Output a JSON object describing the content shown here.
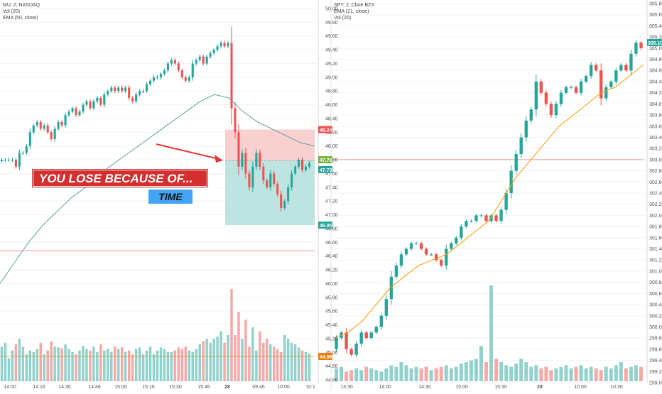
{
  "left_panel": {
    "legend": [
      "MU, 2, NASDAQ",
      "Vol (20)",
      "EMA (50, close)"
    ],
    "price_axis": [
      "50.00",
      "49.80",
      "49.60",
      "49.40",
      "49.20",
      "49.00",
      "48.80",
      "48.60",
      "48.40",
      "48.20",
      "48.00",
      "47.80",
      "47.60",
      "47.40",
      "47.20",
      "47.00",
      "46.80",
      "46.60",
      "46.40",
      "46.20",
      "46.00",
      "45.80",
      "45.60",
      "45.40",
      "45.20",
      "45.00",
      "44.80",
      "44.60"
    ],
    "time_axis": [
      "14:00",
      "14:16",
      "14:30",
      "14:46",
      "15:00",
      "15:16",
      "15:30",
      "15:46",
      "28",
      "09:46",
      "10:00",
      "10:1"
    ],
    "badges": {
      "stop": "48.24",
      "upper": "47.79",
      "last": "47.73",
      "target": "46.85",
      "volume": "44.96"
    },
    "annotation": {
      "headline": "YOU LOSE BECAUSE OF...",
      "subtitle": "TIME"
    }
  },
  "right_panel": {
    "legend": [
      "SPY, 2, Cboe BZX",
      "EMA (21, close)",
      "Vol (20)"
    ],
    "price_axis": [
      "305.80",
      "305.60",
      "305.40",
      "305.20",
      "305.00",
      "304.80",
      "304.60",
      "304.40",
      "304.20",
      "304.00",
      "303.80",
      "303.60",
      "303.40",
      "303.20",
      "303.00",
      "302.80",
      "302.60",
      "302.40",
      "302.20",
      "302.00",
      "301.80",
      "301.60",
      "301.40",
      "301.20",
      "301.00",
      "300.80",
      "300.60",
      "300.40",
      "300.20",
      "300.00",
      "299.80",
      "299.60",
      "299.40",
      "299.20",
      "299.00"
    ],
    "time_axis": [
      "13:30",
      "14:00",
      "14:30",
      "15:00",
      "15:30",
      "28",
      "10:00",
      "10:30"
    ],
    "badges": {
      "last": "305.10"
    }
  },
  "colors": {
    "up": "#26a69a",
    "down": "#ef5350",
    "ema_left": "#5e9ea0",
    "ema_right": "#ff9800",
    "stop_zone": "#f8c8c8",
    "target_zone": "#b2dfdb",
    "banner": "#d32f2f",
    "time_box": "#42a5f5"
  },
  "chart_data": [
    {
      "type": "candlestick",
      "title": "MU, 2, NASDAQ",
      "ylim": [
        44.6,
        50.0
      ],
      "closes": [
        47.8,
        47.8,
        47.8,
        47.8,
        47.7,
        47.9,
        47.9,
        48.0,
        48.2,
        48.3,
        48.35,
        48.25,
        48.3,
        48.2,
        48.1,
        48.25,
        48.35,
        48.3,
        48.45,
        48.5,
        48.55,
        48.45,
        48.5,
        48.6,
        48.65,
        48.55,
        48.65,
        48.7,
        48.6,
        48.75,
        48.8,
        48.85,
        48.8,
        48.85,
        48.8,
        48.85,
        48.7,
        48.65,
        48.75,
        48.8,
        48.8,
        48.9,
        48.95,
        49.0,
        49.0,
        49.05,
        49.1,
        49.2,
        49.25,
        49.2,
        49.1,
        49.0,
        48.95,
        49.0,
        49.2,
        49.25,
        49.3,
        49.2,
        49.3,
        49.35,
        49.4,
        49.45,
        49.5,
        49.45,
        49.5,
        48.55,
        48.2,
        47.7,
        47.9,
        47.6,
        47.4,
        47.7,
        47.9,
        47.7,
        47.5,
        47.4,
        47.6,
        47.45,
        47.3,
        47.1,
        47.2,
        47.4,
        47.6,
        47.7,
        47.8,
        47.65,
        47.7,
        47.75
      ],
      "volume": [
        45,
        50,
        30,
        40,
        48,
        55,
        45,
        35,
        40,
        38,
        42,
        50,
        35,
        40,
        52,
        45,
        44,
        43,
        48,
        42,
        38,
        35,
        40,
        46,
        42,
        40,
        45,
        38,
        48,
        40,
        42,
        38,
        45,
        42,
        44,
        38,
        40,
        35,
        42,
        44,
        35,
        40,
        45,
        35,
        40,
        44,
        42,
        38,
        38,
        40,
        44,
        42,
        45,
        40,
        38,
        42,
        48,
        52,
        55,
        50,
        55,
        58,
        65,
        50,
        60,
        120,
        60,
        90,
        55,
        80,
        45,
        70,
        40,
        65,
        50,
        55,
        48,
        45,
        42,
        38,
        60,
        55,
        50,
        48,
        44,
        40,
        38,
        36
      ],
      "ema_50": [
        46.0,
        46.3,
        46.6,
        46.85,
        47.05,
        47.25,
        47.4,
        47.6,
        47.75,
        47.9,
        48.05,
        48.2,
        48.35,
        48.5,
        48.65,
        48.75,
        48.7,
        48.5,
        48.35,
        48.25,
        48.15,
        48.05,
        48.0
      ],
      "levels": {
        "stop": 48.24,
        "entry": 47.79,
        "last": 47.73,
        "target": 46.85
      }
    },
    {
      "type": "candlestick",
      "title": "SPY, 2, Cboe BZX",
      "ylim": [
        299.0,
        305.8
      ],
      "closes": [
        299.8,
        299.9,
        299.6,
        299.5,
        299.7,
        299.9,
        299.8,
        299.9,
        300.0,
        300.2,
        300.5,
        300.9,
        301.1,
        301.3,
        301.4,
        301.5,
        301.5,
        301.4,
        301.3,
        301.3,
        301.2,
        301.1,
        301.4,
        301.5,
        301.6,
        301.8,
        301.9,
        301.9,
        302.0,
        302.0,
        301.9,
        302.0,
        301.9,
        302.1,
        302.4,
        302.8,
        303.1,
        303.4,
        303.7,
        303.9,
        304.4,
        304.2,
        304.0,
        303.8,
        304.0,
        304.2,
        304.3,
        304.3,
        304.2,
        304.4,
        304.5,
        304.7,
        304.6,
        304.1,
        304.3,
        304.4,
        304.6,
        304.7,
        304.6,
        304.9,
        305.1,
        305.0
      ],
      "volume": [
        8,
        9,
        6,
        7,
        8,
        7,
        9,
        8,
        7,
        6,
        8,
        10,
        9,
        12,
        10,
        8,
        9,
        8,
        9,
        7,
        8,
        9,
        10,
        8,
        9,
        11,
        12,
        13,
        14,
        22,
        12,
        60,
        14,
        12,
        10,
        9,
        11,
        14,
        12,
        9,
        10,
        8,
        9,
        7,
        8,
        9,
        10,
        8,
        9,
        10,
        8,
        9,
        8,
        7,
        9,
        8,
        10,
        12,
        8,
        9,
        10,
        9
      ],
      "ema_21": [
        299.8,
        299.9,
        300.1,
        300.4,
        300.7,
        300.9,
        301.1,
        301.2,
        301.3,
        301.5,
        301.7,
        301.9,
        302.3,
        302.7,
        303.0,
        303.3,
        303.6,
        303.8,
        304.0,
        304.2,
        304.3,
        304.5,
        304.7
      ],
      "levels": {
        "last": 305.1,
        "reference": 303.0
      }
    }
  ]
}
